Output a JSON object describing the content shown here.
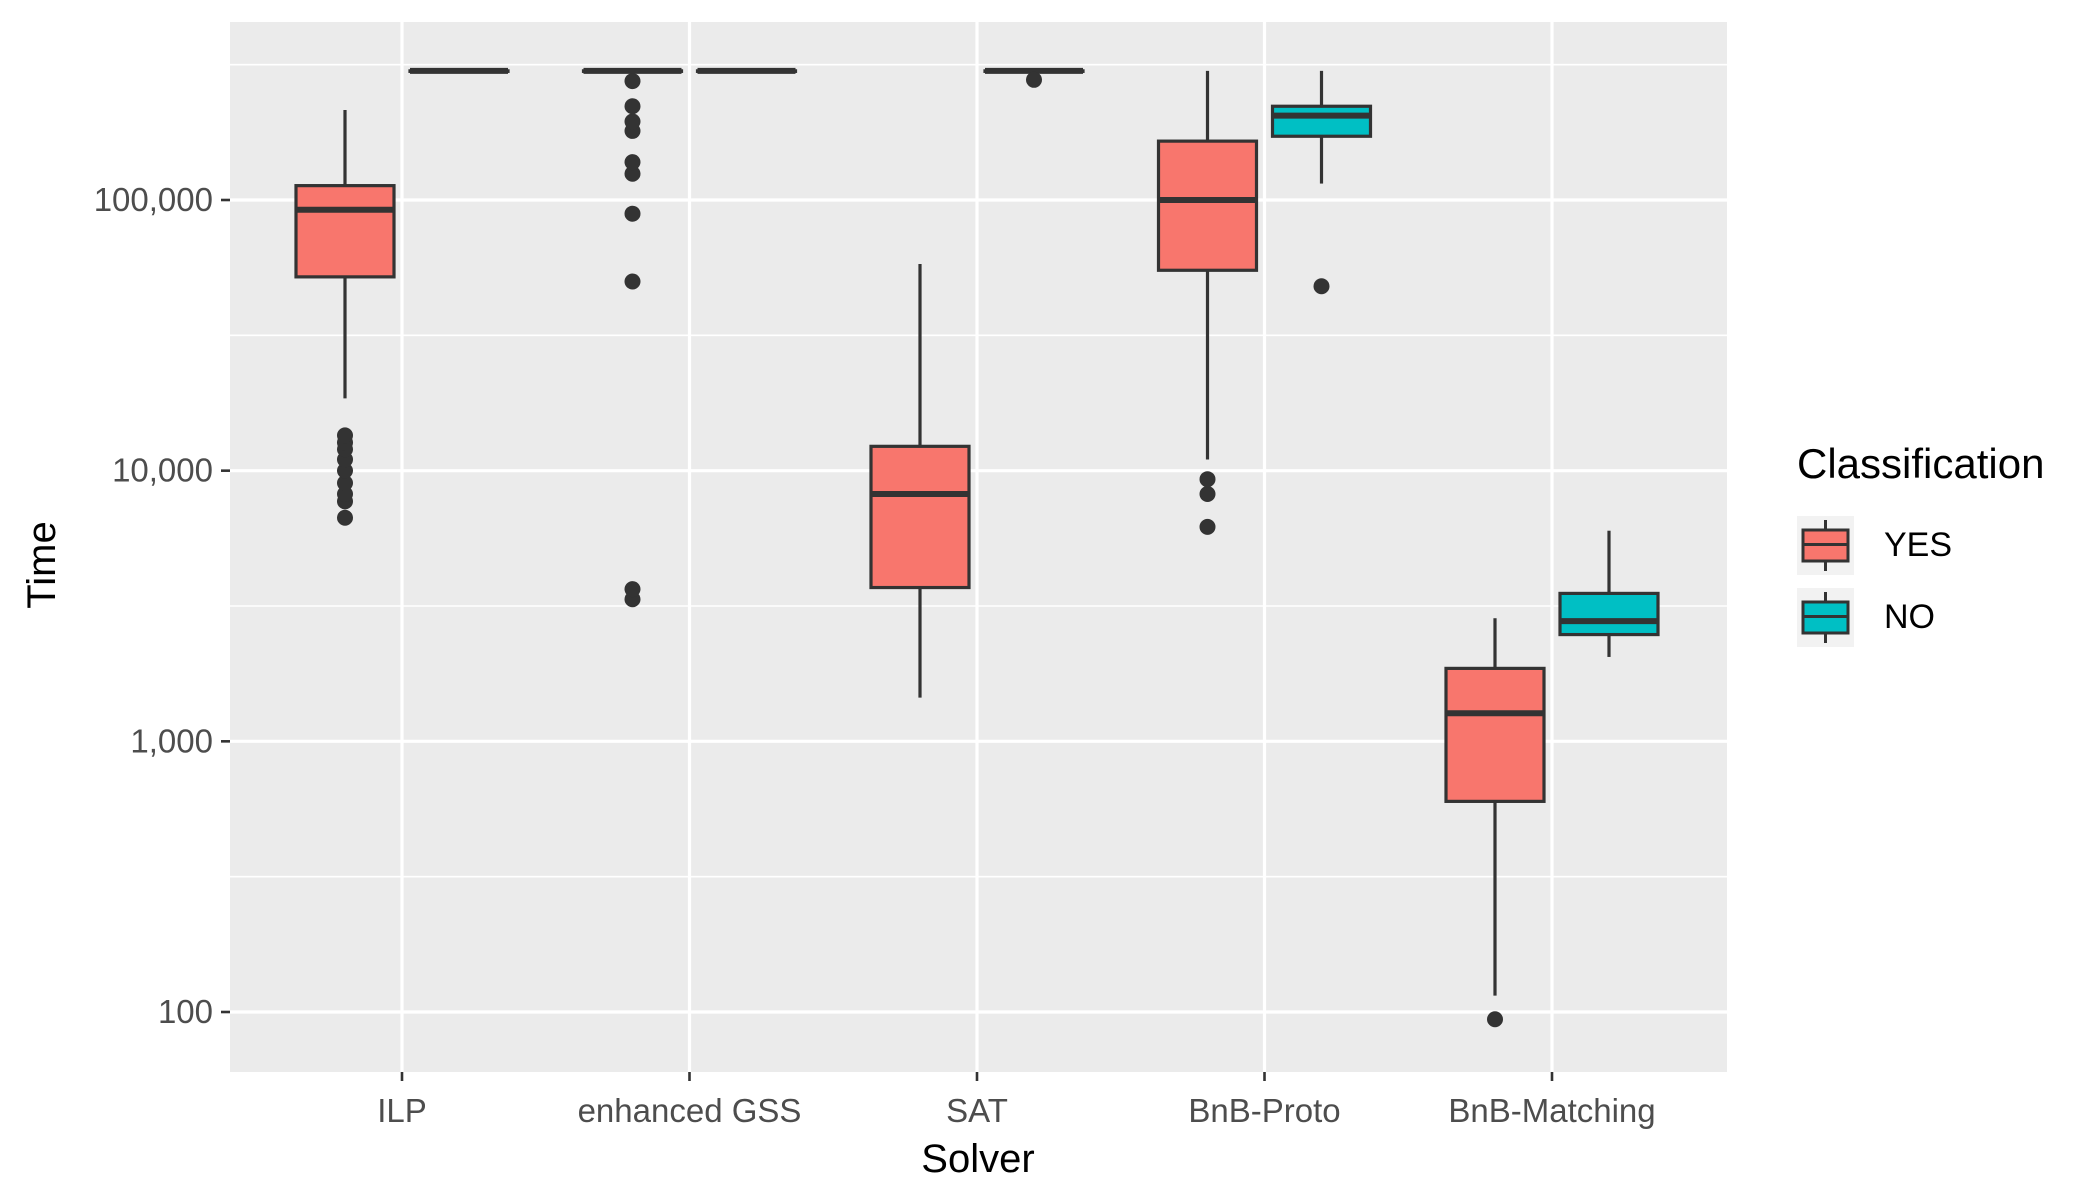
{
  "chart_data": {
    "type": "box",
    "title": "",
    "xlabel": "Solver",
    "ylabel": "Time",
    "y_scale": "log10",
    "ylim": [
      60,
      420000
    ],
    "y_ticks": [
      100,
      1000,
      10000,
      100000
    ],
    "y_tick_labels": [
      "100",
      "1,000",
      "10,000",
      "100,000"
    ],
    "grid": true,
    "categories": [
      "ILP",
      "enhanced GSS",
      "SAT",
      "BnB-Proto",
      "BnB-Matching"
    ],
    "legend": {
      "title": "Classification",
      "position": "right",
      "entries": [
        {
          "name": "YES",
          "color": "#F8766D"
        },
        {
          "name": "NO",
          "color": "#00BFC4"
        }
      ]
    },
    "series": [
      {
        "name": "YES",
        "color": "#F8766D",
        "boxes": [
          {
            "category": "ILP",
            "whisker_low": 18500,
            "q1": 52000,
            "median": 92000,
            "q3": 113000,
            "whisker_high": 215000,
            "outliers": [
              6700,
              7700,
              8200,
              9000,
              10000,
              11000,
              12000,
              12700,
              13500
            ]
          },
          {
            "category": "enhanced GSS",
            "whisker_low": 300000,
            "q1": 300000,
            "median": 300000,
            "q3": 300000,
            "whisker_high": 300000,
            "outliers": [
              3350,
              3650,
              50000,
              89000,
              125000,
              138000,
              180000,
              195000,
              222000,
              275000
            ]
          },
          {
            "category": "SAT",
            "whisker_low": 1450,
            "q1": 3700,
            "median": 8200,
            "q3": 12300,
            "whisker_high": 58000,
            "outliers": []
          },
          {
            "category": "BnB-Proto",
            "whisker_low": 11000,
            "q1": 55000,
            "median": 100000,
            "q3": 165000,
            "whisker_high": 300000,
            "outliers": [
              6200,
              8200,
              9300
            ]
          },
          {
            "category": "BnB-Matching",
            "whisker_low": 115,
            "q1": 600,
            "median": 1270,
            "q3": 1860,
            "whisker_high": 2850,
            "outliers": [
              94
            ]
          }
        ]
      },
      {
        "name": "NO",
        "color": "#00BFC4",
        "boxes": [
          {
            "category": "ILP",
            "whisker_low": 300000,
            "q1": 300000,
            "median": 300000,
            "q3": 300000,
            "whisker_high": 300000,
            "outliers": []
          },
          {
            "category": "enhanced GSS",
            "whisker_low": 300000,
            "q1": 300000,
            "median": 300000,
            "q3": 300000,
            "whisker_high": 300000,
            "outliers": []
          },
          {
            "category": "SAT",
            "whisker_low": 300000,
            "q1": 300000,
            "median": 300000,
            "q3": 300000,
            "whisker_high": 300000,
            "outliers": [
              278000
            ]
          },
          {
            "category": "BnB-Proto",
            "whisker_low": 115000,
            "q1": 172000,
            "median": 205000,
            "q3": 222000,
            "whisker_high": 300000,
            "outliers": [
              48000
            ]
          },
          {
            "category": "BnB-Matching",
            "whisker_low": 2050,
            "q1": 2480,
            "median": 2780,
            "q3": 3520,
            "whisker_high": 6000,
            "outliers": []
          }
        ]
      }
    ]
  }
}
